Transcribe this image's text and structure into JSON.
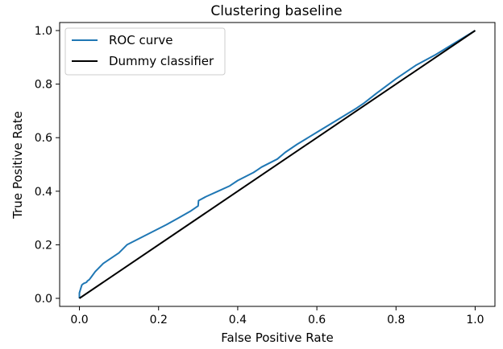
{
  "chart_data": {
    "type": "line",
    "title": "Clustering baseline",
    "xlabel": "False Positive Rate",
    "ylabel": "True Positive Rate",
    "xlim": [
      -0.05,
      1.05
    ],
    "ylim": [
      -0.03,
      1.03
    ],
    "xticks": [
      0.0,
      0.2,
      0.4,
      0.6,
      0.8,
      1.0
    ],
    "yticks": [
      0.0,
      0.2,
      0.4,
      0.6,
      0.8,
      1.0
    ],
    "xtick_labels": [
      "0.0",
      "0.2",
      "0.4",
      "0.6",
      "0.8",
      "1.0"
    ],
    "ytick_labels": [
      "0.0",
      "0.2",
      "0.4",
      "0.6",
      "0.8",
      "1.0"
    ],
    "grid": false,
    "legend_position": "top-left",
    "series": [
      {
        "name": "ROC curve",
        "color": "#1f77b4",
        "x": [
          0.0,
          0.0,
          0.004,
          0.006,
          0.01,
          0.018,
          0.02,
          0.025,
          0.03,
          0.04,
          0.05,
          0.06,
          0.08,
          0.1,
          0.12,
          0.14,
          0.16,
          0.18,
          0.2,
          0.22,
          0.25,
          0.28,
          0.3,
          0.301,
          0.32,
          0.35,
          0.38,
          0.4,
          0.42,
          0.44,
          0.45,
          0.46,
          0.5,
          0.52,
          0.55,
          0.6,
          0.65,
          0.7,
          0.72,
          0.75,
          0.8,
          0.85,
          0.9,
          0.95,
          1.0
        ],
        "y": [
          0.0,
          0.02,
          0.04,
          0.05,
          0.055,
          0.06,
          0.065,
          0.07,
          0.08,
          0.1,
          0.115,
          0.13,
          0.15,
          0.17,
          0.2,
          0.215,
          0.23,
          0.245,
          0.26,
          0.275,
          0.3,
          0.325,
          0.345,
          0.365,
          0.38,
          0.4,
          0.42,
          0.44,
          0.455,
          0.47,
          0.48,
          0.49,
          0.52,
          0.545,
          0.575,
          0.62,
          0.665,
          0.71,
          0.73,
          0.765,
          0.82,
          0.87,
          0.91,
          0.955,
          1.0
        ]
      },
      {
        "name": "Dummy classifier",
        "color": "#000000",
        "x": [
          0.0,
          1.0
        ],
        "y": [
          0.0,
          1.0
        ]
      }
    ]
  }
}
